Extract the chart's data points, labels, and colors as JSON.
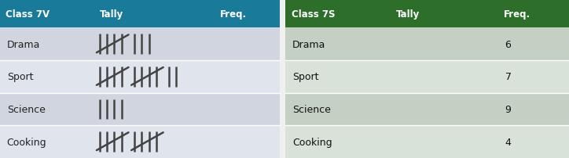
{
  "table1": {
    "header": [
      "Class 7V",
      "Tally",
      "Freq."
    ],
    "header_bg": "#1a7a9a",
    "header_text": "#ffffff",
    "rows": [
      {
        "label": "Drama",
        "tally_count": 8,
        "freq": ""
      },
      {
        "label": "Sport",
        "tally_count": 12,
        "freq": ""
      },
      {
        "label": "Science",
        "tally_count": 4,
        "freq": ""
      },
      {
        "label": "Cooking",
        "tally_count": 10,
        "freq": ""
      }
    ],
    "row_bg_odd": "#d0d5df",
    "row_bg_even": "#e0e4ec",
    "row_text": "#222222",
    "col_props": [
      0.335,
      0.43,
      0.235
    ]
  },
  "table2": {
    "header": [
      "Class 7S",
      "Tally",
      "Freq."
    ],
    "header_bg": "#2d6e2a",
    "header_text": "#ffffff",
    "rows": [
      {
        "label": "Drama",
        "tally_count": 0,
        "freq": "6"
      },
      {
        "label": "Sport",
        "tally_count": 0,
        "freq": "7"
      },
      {
        "label": "Science",
        "tally_count": 0,
        "freq": "9"
      },
      {
        "label": "Cooking",
        "tally_count": 0,
        "freq": "4"
      }
    ],
    "row_bg_odd": "#c4d0c4",
    "row_bg_even": "#d8e2d8",
    "row_text": "#111111",
    "col_props": [
      0.37,
      0.38,
      0.25
    ]
  },
  "fig_w": 7.24,
  "fig_h": 2.03,
  "dpi": 100,
  "fig_bg": "#f0f0f0",
  "divider_color": "#ffffff",
  "tally_color": "#444444"
}
